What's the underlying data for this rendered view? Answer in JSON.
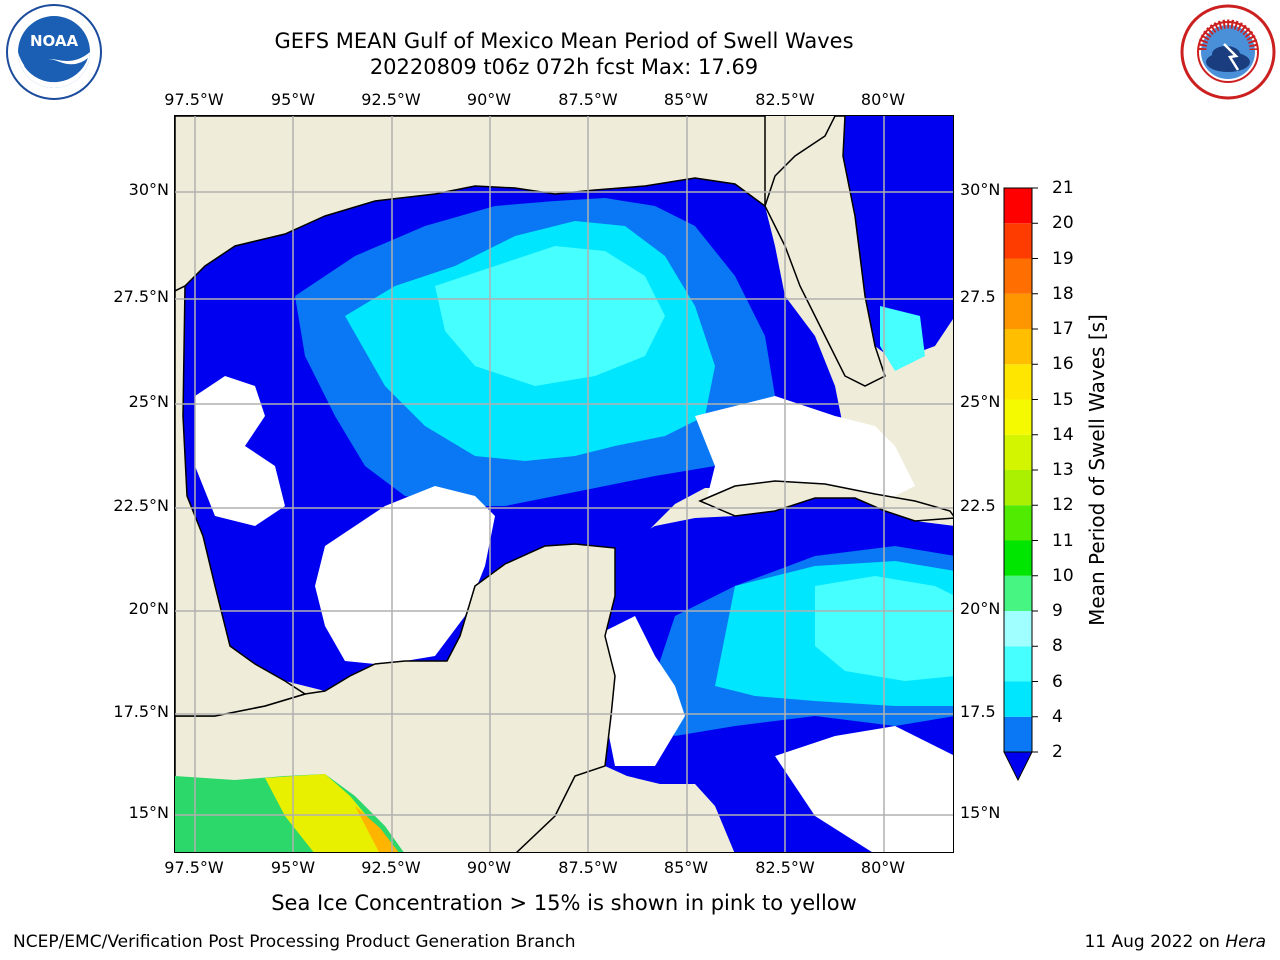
{
  "header": {
    "title_line1": "GEFS MEAN Gulf of Mexico Mean Period of Swell Waves",
    "title_line2": "20220809 t06z 072h fcst   Max: 17.69"
  },
  "logos": {
    "left": "NOAA",
    "right": "NATIONAL WEATHER SERVICE"
  },
  "map": {
    "lon_labels": [
      "97.5°W",
      "95°W",
      "92.5°W",
      "90°W",
      "87.5°W",
      "85°W",
      "82.5°W",
      "80°W"
    ],
    "lat_labels_left": [
      "30°N",
      "27.5°N",
      "25°N",
      "22.5°N",
      "20°N",
      "17.5°N",
      "15°N"
    ],
    "lat_labels_right": [
      "30°N",
      "27.5",
      "25°N",
      "22.5",
      "20°N",
      "17.5",
      "15°N"
    ],
    "colors": {
      "land": "#efedda",
      "ocean_missing": "#ffffff",
      "grid": "#b0b0b0"
    }
  },
  "colorbar": {
    "label": "Mean Period of Swell Waves [s]",
    "ticks": [
      "2",
      "4",
      "6",
      "8",
      "9",
      "10",
      "11",
      "12",
      "13",
      "14",
      "15",
      "16",
      "17",
      "18",
      "19",
      "20",
      "21"
    ],
    "colors": [
      "#0000f0",
      "#0a78f5",
      "#00e6ff",
      "#46ffff",
      "#a0ffff",
      "#46f582",
      "#00e600",
      "#50eb00",
      "#aaf000",
      "#d4f500",
      "#f5fa00",
      "#ffe600",
      "#ffbe00",
      "#ff9600",
      "#ff6e00",
      "#ff3c00",
      "#ff0000"
    ]
  },
  "footer": {
    "note": "Sea Ice Concentration > 15% is shown in pink to yellow",
    "left": "NCEP/EMC/Verification Post Processing Product Generation Branch",
    "right_date": "11 Aug 2022 on ",
    "right_host": "Hera"
  }
}
